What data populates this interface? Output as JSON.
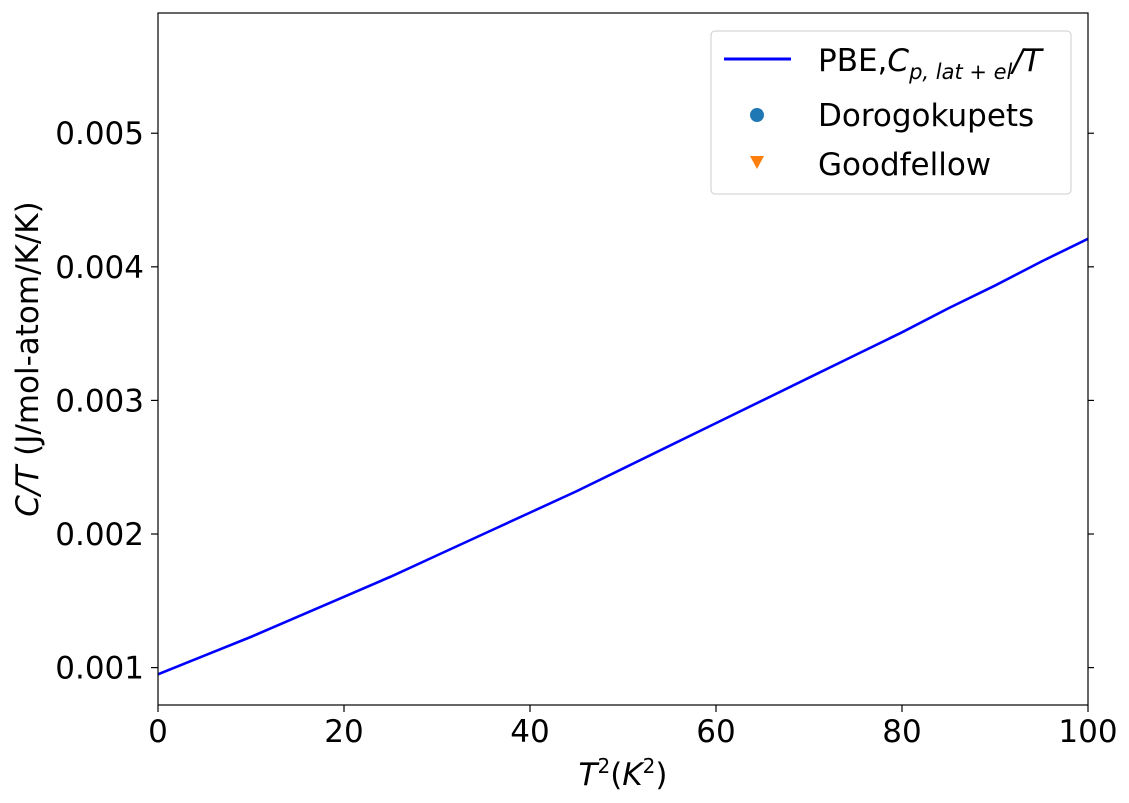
{
  "chart_data": {
    "type": "line",
    "title": "",
    "xlabel": {
      "base": "T",
      "sup": "2",
      "open": "(",
      "unit_base": "K",
      "unit_sup": "2",
      "close": ")"
    },
    "ylabel": {
      "italic": "C/T",
      "rest": " (J/mol-atom/K/K)"
    },
    "xlim": [
      0,
      100
    ],
    "ylim": [
      0.00072,
      0.0059
    ],
    "xticks": [
      0,
      20,
      40,
      60,
      80,
      100
    ],
    "xtick_labels": [
      "0",
      "20",
      "40",
      "60",
      "80",
      "100"
    ],
    "yticks": [
      0.001,
      0.002,
      0.003,
      0.004,
      0.005
    ],
    "ytick_labels": [
      "0.001",
      "0.002",
      "0.003",
      "0.004",
      "0.005"
    ],
    "grid": false,
    "legend_position": "top-right",
    "series": [
      {
        "name": {
          "prefix": "PBE,",
          "main": "C",
          "sub": "p, lat + el",
          "suffix": "/T"
        },
        "marker": "line",
        "color": "#0000ff",
        "x": [
          0,
          5,
          10,
          15,
          20,
          25,
          30,
          35,
          40,
          45,
          50,
          55,
          60,
          65,
          70,
          75,
          80,
          85,
          90,
          95,
          100
        ],
        "y": [
          0.00095,
          0.00109,
          0.00123,
          0.00138,
          0.00153,
          0.00168,
          0.00184,
          0.002,
          0.00216,
          0.00232,
          0.00249,
          0.00266,
          0.00283,
          0.003,
          0.00317,
          0.00334,
          0.00351,
          0.00369,
          0.00386,
          0.00404,
          0.00421
        ]
      },
      {
        "name": "Dorogokupets",
        "marker": "circle",
        "color": "#1f77b4",
        "x": [],
        "y": []
      },
      {
        "name": "Goodfellow",
        "marker": "triangle-down",
        "color": "#ff7f0e",
        "x": [],
        "y": []
      }
    ]
  }
}
